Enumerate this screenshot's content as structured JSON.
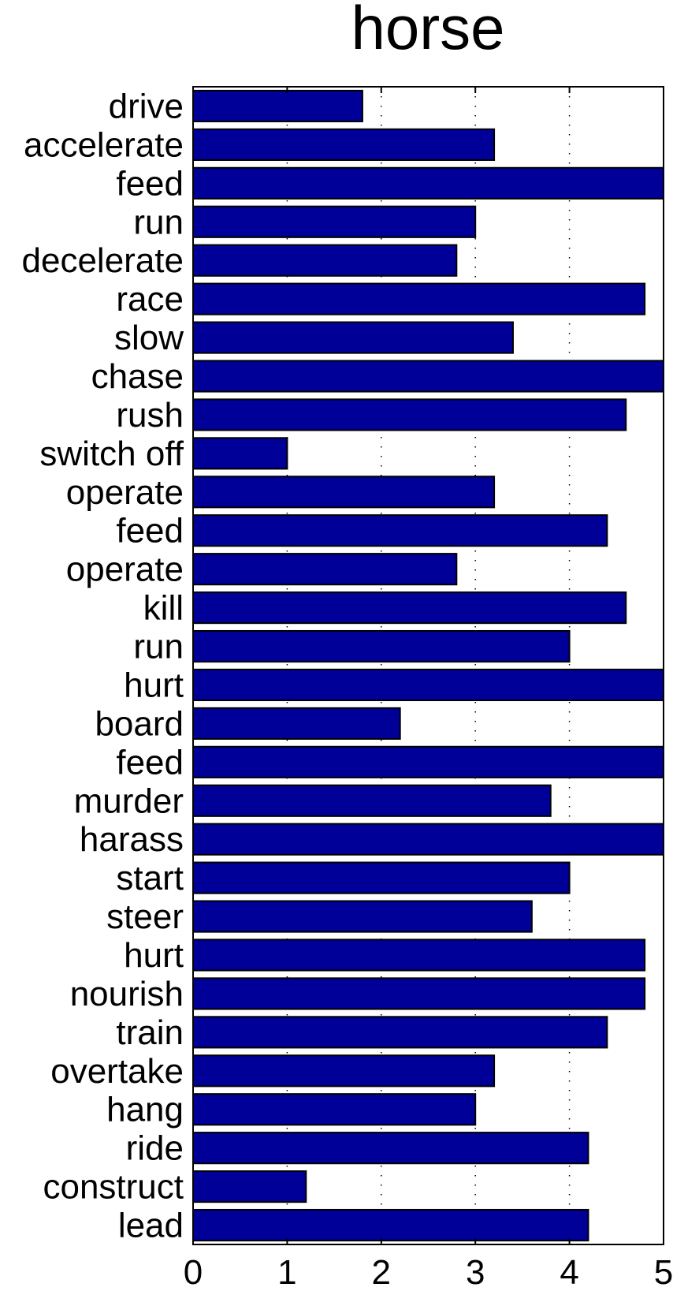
{
  "chart_data": {
    "type": "bar",
    "orientation": "horizontal",
    "title": "horse",
    "categories": [
      "drive",
      "accelerate",
      "feed",
      "run",
      "decelerate",
      "race",
      "slow",
      "chase",
      "rush",
      "switch off",
      "operate",
      "feed",
      "operate",
      "kill",
      "run",
      "hurt",
      "board",
      "feed",
      "murder",
      "harass",
      "start",
      "steer",
      "hurt",
      "nourish",
      "train",
      "overtake",
      "hang",
      "ride",
      "construct",
      "lead"
    ],
    "values": [
      1.8,
      3.2,
      5.0,
      3.0,
      2.8,
      4.8,
      3.4,
      5.0,
      4.6,
      1.0,
      3.2,
      4.4,
      2.8,
      4.6,
      4.0,
      5.0,
      2.2,
      5.0,
      3.8,
      5.0,
      4.0,
      3.6,
      4.8,
      4.8,
      4.4,
      3.2,
      3.0,
      4.2,
      1.2,
      4.2
    ],
    "xlim": [
      0,
      5
    ],
    "xticks": [
      "0",
      "1",
      "2",
      "3",
      "4",
      "5"
    ],
    "xlabel": "",
    "ylabel": "",
    "grid": true,
    "bar_color": "#000099"
  }
}
